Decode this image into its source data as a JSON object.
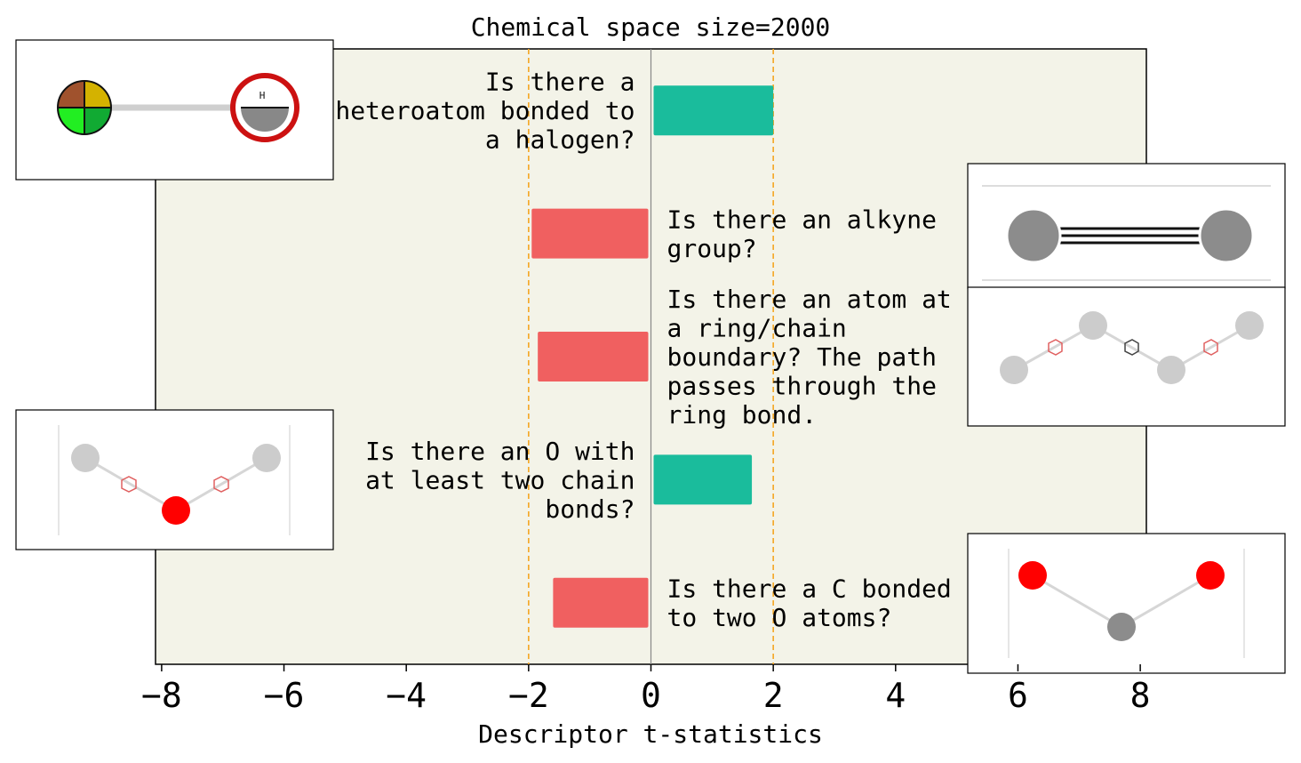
{
  "chart_data": {
    "type": "bar",
    "orientation": "horizontal",
    "title": "Chemical space size=2000",
    "xlabel": "Descriptor t-statistics",
    "xlim": [
      -8.1,
      8.1
    ],
    "xticks": [
      -8,
      -6,
      -4,
      -2,
      0,
      2,
      4,
      6,
      8
    ],
    "xtick_labels": [
      "−8",
      "−6",
      "−4",
      "−2",
      "0",
      "2",
      "4",
      "6",
      "8"
    ],
    "threshold_lines": [
      -2,
      2
    ],
    "zero_line": 0,
    "colors": {
      "positive": "#1abc9c",
      "negative": "#f06060",
      "plot_background": "#f3f3e8",
      "threshold": "#f5a623",
      "zero": "#888888"
    },
    "bars": [
      {
        "value": 2.0,
        "label_lines": [
          "Is there a",
          "heteroatom bonded to",
          "a halogen?"
        ]
      },
      {
        "value": -1.95,
        "label_lines": [
          "Is there an alkyne",
          "group?"
        ]
      },
      {
        "value": -1.85,
        "label_lines": [
          "Is there an atom at",
          "a ring/chain",
          "boundary? The path",
          "passes through the",
          "ring bond."
        ]
      },
      {
        "value": 1.65,
        "label_lines": [
          "Is there an O with",
          "at least two chain",
          "bonds?"
        ]
      },
      {
        "value": -1.6,
        "label_lines": [
          "Is there a C bonded",
          "to two O atoms?"
        ]
      }
    ],
    "grid": false
  }
}
